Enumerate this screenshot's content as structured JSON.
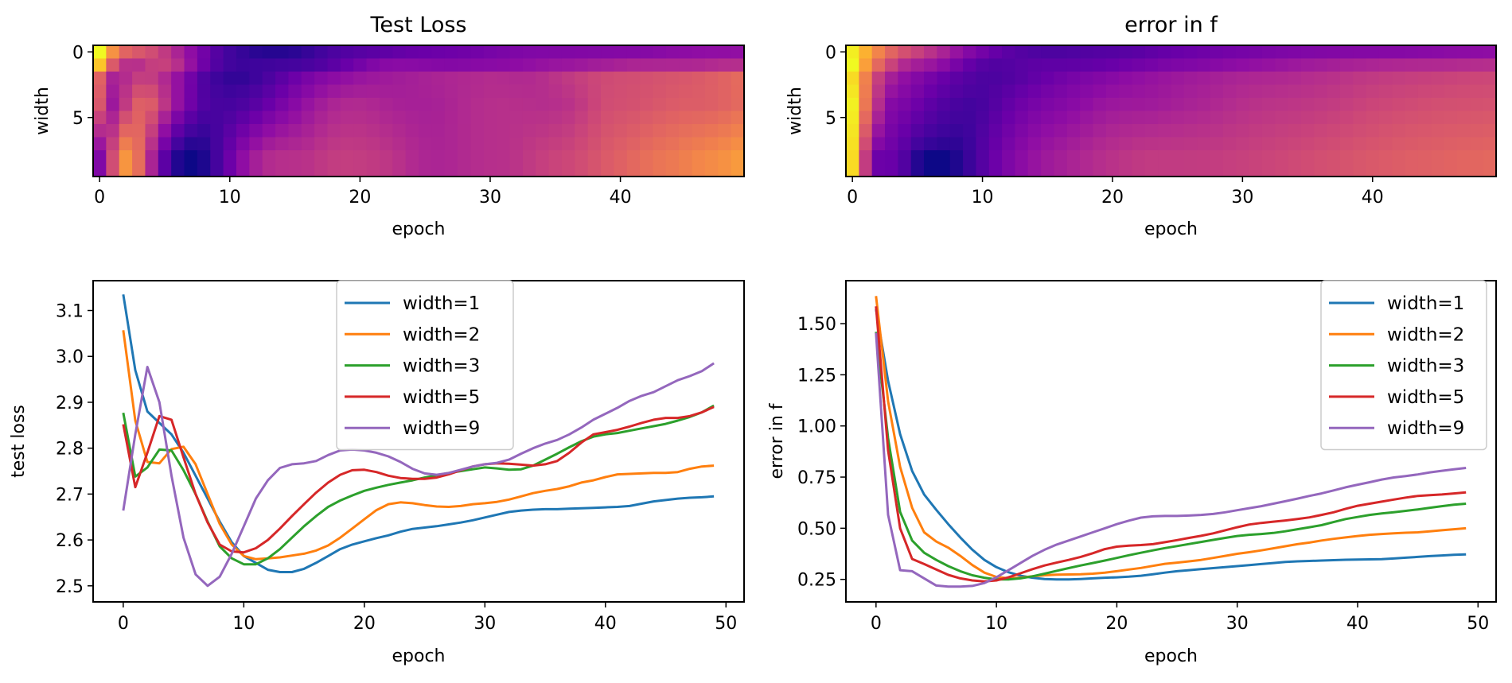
{
  "chart_data": [
    {
      "type": "heatmap",
      "title": "Test Loss",
      "xlabel": "epoch",
      "ylabel": "width",
      "colormap": "plasma",
      "rows": 10,
      "cols": 50,
      "xticks": [
        0,
        10,
        20,
        30,
        40
      ],
      "yticks": [
        0,
        5
      ],
      "description": "Rows = width index 0..9, cols = epoch 0..49; values mirror test-loss curves (bright = high loss)",
      "values_normalized": "generated from the five test-loss series, interpolated across width rows"
    },
    {
      "type": "heatmap",
      "title": "error in f",
      "xlabel": "epoch",
      "ylabel": "width",
      "colormap": "plasma",
      "rows": 10,
      "cols": 50,
      "xticks": [
        0,
        10,
        20,
        30,
        40
      ],
      "yticks": [
        0,
        5
      ],
      "description": "Rows = width index 0..9, cols = epoch 0..49; bright yellow at epoch 0, dark minimum near epochs 4-10, gradual rise",
      "values_normalized": "generated from the five error-in-f series, interpolated across width rows"
    },
    {
      "type": "line",
      "title": "",
      "xlabel": "epoch",
      "ylabel": "test loss",
      "xlim": [
        -2.5,
        51.5
      ],
      "ylim": [
        2.465,
        3.165
      ],
      "xticks": [
        0,
        10,
        20,
        30,
        40,
        50
      ],
      "yticks": [
        2.5,
        2.6,
        2.7,
        2.8,
        2.9,
        3.0,
        3.1
      ],
      "ytick_labels": [
        "2.5",
        "2.6",
        "2.7",
        "2.8",
        "2.9",
        "3.0",
        "3.1"
      ],
      "legend_position": "upper-center",
      "x": [
        0,
        1,
        2,
        3,
        4,
        5,
        6,
        7,
        8,
        9,
        10,
        11,
        12,
        13,
        14,
        15,
        16,
        17,
        18,
        19,
        20,
        21,
        22,
        23,
        24,
        25,
        26,
        27,
        28,
        29,
        30,
        31,
        32,
        33,
        34,
        35,
        36,
        37,
        38,
        39,
        40,
        41,
        42,
        43,
        44,
        45,
        46,
        47,
        48,
        49
      ],
      "series": [
        {
          "name": "width=1",
          "color": "#1f77b4",
          "values": [
            3.135,
            2.97,
            2.88,
            2.855,
            2.83,
            2.79,
            2.74,
            2.69,
            2.64,
            2.595,
            2.565,
            2.55,
            2.535,
            2.53,
            2.53,
            2.537,
            2.55,
            2.565,
            2.58,
            2.59,
            2.597,
            2.604,
            2.61,
            2.618,
            2.624,
            2.627,
            2.63,
            2.634,
            2.638,
            2.643,
            2.649,
            2.655,
            2.661,
            2.664,
            2.666,
            2.667,
            2.667,
            2.668,
            2.669,
            2.67,
            2.671,
            2.672,
            2.674,
            2.679,
            2.684,
            2.687,
            2.69,
            2.692,
            2.693,
            2.695
          ]
        },
        {
          "name": "width=2",
          "color": "#ff7f0e",
          "values": [
            3.057,
            2.86,
            2.77,
            2.767,
            2.798,
            2.803,
            2.765,
            2.7,
            2.635,
            2.59,
            2.565,
            2.558,
            2.56,
            2.562,
            2.566,
            2.57,
            2.577,
            2.588,
            2.605,
            2.625,
            2.645,
            2.665,
            2.678,
            2.682,
            2.68,
            2.676,
            2.673,
            2.672,
            2.674,
            2.678,
            2.68,
            2.683,
            2.688,
            2.695,
            2.702,
            2.707,
            2.711,
            2.717,
            2.725,
            2.73,
            2.737,
            2.743,
            2.744,
            2.745,
            2.746,
            2.746,
            2.748,
            2.755,
            2.76,
            2.762
          ]
        },
        {
          "name": "width=3",
          "color": "#2ca02c",
          "values": [
            2.877,
            2.738,
            2.758,
            2.797,
            2.795,
            2.752,
            2.7,
            2.64,
            2.586,
            2.56,
            2.547,
            2.547,
            2.56,
            2.58,
            2.605,
            2.63,
            2.652,
            2.672,
            2.686,
            2.697,
            2.707,
            2.714,
            2.72,
            2.725,
            2.73,
            2.736,
            2.741,
            2.746,
            2.75,
            2.754,
            2.758,
            2.756,
            2.753,
            2.754,
            2.762,
            2.775,
            2.788,
            2.802,
            2.815,
            2.825,
            2.83,
            2.833,
            2.838,
            2.843,
            2.848,
            2.853,
            2.86,
            2.868,
            2.878,
            2.893
          ]
        },
        {
          "name": "width=5",
          "color": "#d62728",
          "values": [
            2.852,
            2.715,
            2.79,
            2.87,
            2.862,
            2.78,
            2.7,
            2.638,
            2.59,
            2.575,
            2.573,
            2.582,
            2.6,
            2.625,
            2.652,
            2.678,
            2.703,
            2.725,
            2.742,
            2.752,
            2.753,
            2.748,
            2.74,
            2.735,
            2.733,
            2.733,
            2.736,
            2.743,
            2.752,
            2.76,
            2.765,
            2.767,
            2.766,
            2.764,
            2.762,
            2.765,
            2.772,
            2.79,
            2.812,
            2.83,
            2.835,
            2.84,
            2.847,
            2.855,
            2.862,
            2.866,
            2.866,
            2.87,
            2.878,
            2.89
          ]
        },
        {
          "name": "width=9",
          "color": "#9467bd",
          "values": [
            2.664,
            2.83,
            2.977,
            2.9,
            2.74,
            2.605,
            2.525,
            2.5,
            2.52,
            2.57,
            2.63,
            2.69,
            2.73,
            2.757,
            2.765,
            2.767,
            2.772,
            2.785,
            2.795,
            2.797,
            2.795,
            2.79,
            2.782,
            2.77,
            2.755,
            2.745,
            2.742,
            2.746,
            2.753,
            2.76,
            2.765,
            2.768,
            2.775,
            2.788,
            2.8,
            2.81,
            2.818,
            2.83,
            2.845,
            2.862,
            2.875,
            2.888,
            2.903,
            2.914,
            2.922,
            2.935,
            2.948,
            2.957,
            2.968,
            2.985
          ]
        }
      ]
    },
    {
      "type": "line",
      "title": "",
      "xlabel": "epoch",
      "ylabel": "error in f",
      "xlim": [
        -2.5,
        51.5
      ],
      "ylim": [
        0.14,
        1.71
      ],
      "xticks": [
        0,
        10,
        20,
        30,
        40,
        50
      ],
      "yticks": [
        0.25,
        0.5,
        0.75,
        1.0,
        1.25,
        1.5
      ],
      "ytick_labels": [
        "0.25",
        "0.50",
        "0.75",
        "1.00",
        "1.25",
        "1.50"
      ],
      "legend_position": "upper-right",
      "x": [
        0,
        1,
        2,
        3,
        4,
        5,
        6,
        7,
        8,
        9,
        10,
        11,
        12,
        13,
        14,
        15,
        16,
        17,
        18,
        19,
        20,
        21,
        22,
        23,
        24,
        25,
        26,
        27,
        28,
        29,
        30,
        31,
        32,
        33,
        34,
        35,
        36,
        37,
        38,
        39,
        40,
        41,
        42,
        43,
        44,
        45,
        46,
        47,
        48,
        49
      ],
      "series": [
        {
          "name": "width=1",
          "color": "#1f77b4",
          "values": [
            1.57,
            1.22,
            0.96,
            0.78,
            0.665,
            0.59,
            0.52,
            0.455,
            0.395,
            0.345,
            0.31,
            0.285,
            0.268,
            0.258,
            0.252,
            0.25,
            0.25,
            0.252,
            0.255,
            0.258,
            0.26,
            0.263,
            0.268,
            0.275,
            0.283,
            0.29,
            0.295,
            0.3,
            0.305,
            0.31,
            0.315,
            0.32,
            0.325,
            0.33,
            0.335,
            0.338,
            0.34,
            0.342,
            0.344,
            0.346,
            0.347,
            0.348,
            0.349,
            0.352,
            0.356,
            0.36,
            0.364,
            0.367,
            0.37,
            0.372
          ]
        },
        {
          "name": "width=2",
          "color": "#ff7f0e",
          "values": [
            1.635,
            1.12,
            0.8,
            0.6,
            0.48,
            0.435,
            0.405,
            0.365,
            0.32,
            0.283,
            0.262,
            0.255,
            0.258,
            0.265,
            0.27,
            0.273,
            0.274,
            0.275,
            0.278,
            0.283,
            0.29,
            0.298,
            0.306,
            0.316,
            0.326,
            0.332,
            0.338,
            0.345,
            0.355,
            0.365,
            0.375,
            0.383,
            0.392,
            0.402,
            0.412,
            0.422,
            0.43,
            0.44,
            0.448,
            0.455,
            0.462,
            0.468,
            0.472,
            0.475,
            0.478,
            0.48,
            0.485,
            0.49,
            0.495,
            0.5
          ]
        },
        {
          "name": "width=3",
          "color": "#2ca02c",
          "values": [
            1.46,
            0.94,
            0.58,
            0.44,
            0.38,
            0.345,
            0.315,
            0.29,
            0.27,
            0.258,
            0.25,
            0.25,
            0.255,
            0.265,
            0.278,
            0.292,
            0.305,
            0.318,
            0.33,
            0.342,
            0.355,
            0.368,
            0.38,
            0.392,
            0.403,
            0.413,
            0.423,
            0.433,
            0.443,
            0.453,
            0.462,
            0.468,
            0.472,
            0.477,
            0.485,
            0.495,
            0.505,
            0.515,
            0.53,
            0.545,
            0.555,
            0.565,
            0.572,
            0.578,
            0.585,
            0.592,
            0.6,
            0.608,
            0.615,
            0.62
          ]
        },
        {
          "name": "width=5",
          "color": "#d62728",
          "values": [
            1.585,
            0.88,
            0.5,
            0.35,
            0.325,
            0.298,
            0.272,
            0.255,
            0.245,
            0.24,
            0.245,
            0.26,
            0.28,
            0.3,
            0.318,
            0.332,
            0.345,
            0.36,
            0.378,
            0.398,
            0.41,
            0.415,
            0.418,
            0.422,
            0.432,
            0.442,
            0.453,
            0.463,
            0.475,
            0.49,
            0.505,
            0.518,
            0.526,
            0.532,
            0.538,
            0.545,
            0.553,
            0.565,
            0.578,
            0.595,
            0.61,
            0.62,
            0.63,
            0.64,
            0.65,
            0.658,
            0.662,
            0.665,
            0.67,
            0.675
          ]
        },
        {
          "name": "width=9",
          "color": "#9467bd",
          "values": [
            1.455,
            0.565,
            0.295,
            0.29,
            0.255,
            0.22,
            0.215,
            0.215,
            0.218,
            0.232,
            0.26,
            0.295,
            0.33,
            0.365,
            0.395,
            0.42,
            0.44,
            0.46,
            0.48,
            0.5,
            0.52,
            0.537,
            0.552,
            0.558,
            0.56,
            0.56,
            0.562,
            0.565,
            0.57,
            0.578,
            0.588,
            0.598,
            0.608,
            0.62,
            0.632,
            0.645,
            0.658,
            0.67,
            0.685,
            0.7,
            0.713,
            0.725,
            0.738,
            0.748,
            0.755,
            0.763,
            0.773,
            0.781,
            0.788,
            0.795
          ]
        }
      ]
    }
  ]
}
